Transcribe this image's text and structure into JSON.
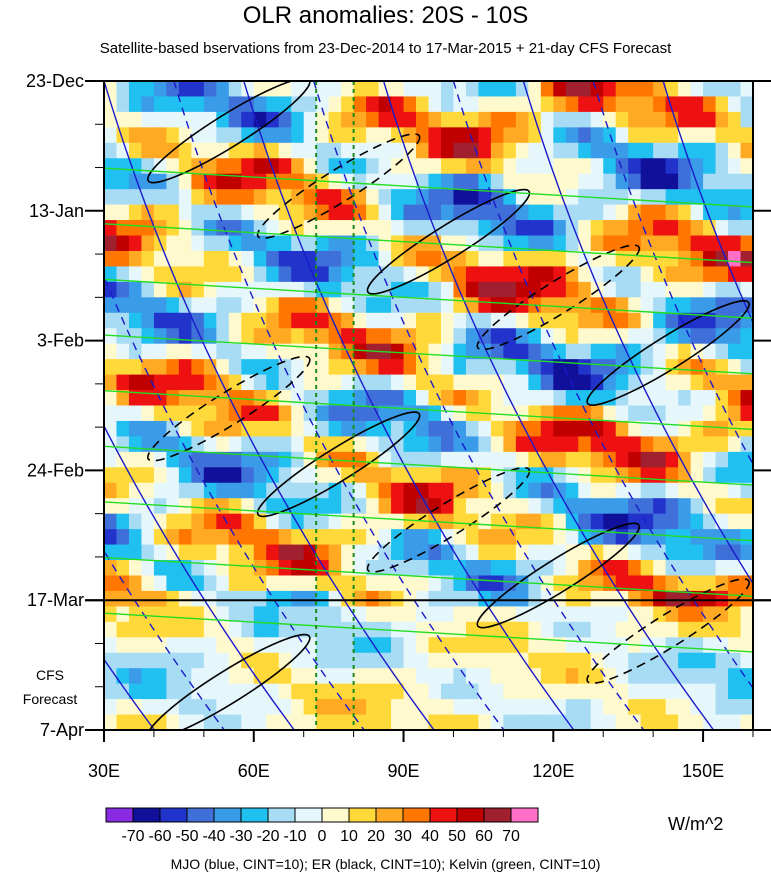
{
  "chart_data": {
    "type": "heatmap",
    "title": "OLR anomalies: 20S - 10S",
    "subtitle": "Satellite-based bservations from 23-Dec-2014 to 17-Mar-2015 + 21-day CFS Forecast",
    "x_ticks": [
      "30E",
      "60E",
      "90E",
      "120E",
      "150E"
    ],
    "x_tick_values": [
      30,
      60,
      90,
      120,
      150
    ],
    "xlim": [
      30,
      160
    ],
    "y_ticks": [
      "23-Dec",
      "13-Jan",
      "3-Feb",
      "24-Feb",
      "17-Mar",
      "7-Apr"
    ],
    "y_tick_days": [
      0,
      21,
      42,
      63,
      84,
      105
    ],
    "ylim_days": [
      0,
      105
    ],
    "y_direction": "time increases downward",
    "observation_end": "17-Mar",
    "forecast_label": [
      "CFS",
      "Forecast"
    ],
    "colorbar": {
      "unit": "W/m^2",
      "labels": [
        "-70",
        "-60",
        "-50",
        "-40",
        "-30",
        "-20",
        "-10",
        "0",
        "10",
        "20",
        "30",
        "40",
        "50",
        "60",
        "70"
      ],
      "levels": [
        -70,
        -60,
        -50,
        -40,
        -30,
        -20,
        -10,
        0,
        10,
        20,
        30,
        40,
        50,
        60,
        70
      ],
      "colors": [
        "#8a2be2",
        "#10109a",
        "#2233cc",
        "#3f6fd8",
        "#3a9be8",
        "#20c0f0",
        "#a8dcf5",
        "#e6f7fb",
        "#fffacd",
        "#ffd93a",
        "#ffaa22",
        "#ff7700",
        "#ee1111",
        "#c00000",
        "#a02030",
        "#ff6ec7"
      ]
    },
    "reference_lines_lon": [
      72.5,
      80
    ],
    "contour_legend": "MJO (blue, CINT=10); ER (black, CINT=10); Kelvin (green, CINT=10)",
    "series": [
      {
        "name": "MJO",
        "color": "#1a1acc"
      },
      {
        "name": "ER",
        "color": "#000000"
      },
      {
        "name": "Kelvin",
        "color": "#22dd22"
      }
    ]
  }
}
